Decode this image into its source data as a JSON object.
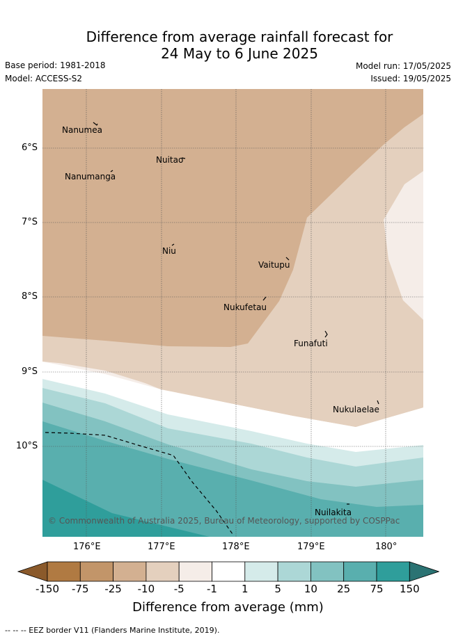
{
  "title_line1": "Difference from average rainfall forecast for",
  "title_line2": "24 May to 6 June 2025",
  "base_period": "Base period: 1981-2018",
  "model": "Model: ACCESS-S2",
  "model_run": "Model run: 17/05/2025",
  "issued": "Issued: 19/05/2025",
  "credit": "© Commonwealth of Australia 2025, Bureau of Meteorology, supported by COSPPac",
  "lat_ticks": [
    "6°S",
    "7°S",
    "8°S",
    "9°S",
    "10°S"
  ],
  "lon_ticks": [
    "176°E",
    "177°E",
    "178°E",
    "179°E",
    "180°"
  ],
  "places": [
    "Nanumea",
    "Nuitao",
    "Nanumanga",
    "Niu",
    "Vaitupu",
    "Nukufetau",
    "Funafuti",
    "Nukulaelae",
    "Nuilakita"
  ],
  "colorbar": {
    "labels": [
      "-150",
      "-75",
      "-25",
      "-10",
      "-5",
      "-1",
      "1",
      "5",
      "10",
      "25",
      "75",
      "150"
    ],
    "colors": [
      "#8b5a2b",
      "#b07a42",
      "#c29569",
      "#d3b091",
      "#e4d0be",
      "#f5ede8",
      "#ffffff",
      "#d5ebea",
      "#acd7d6",
      "#82c2c1",
      "#59afae",
      "#2f9e9b",
      "#2b7373"
    ],
    "label": "Difference from average (mm)"
  },
  "footer": "-- -- -- EEZ border V11 (Flanders Marine Institute, 2019)."
}
